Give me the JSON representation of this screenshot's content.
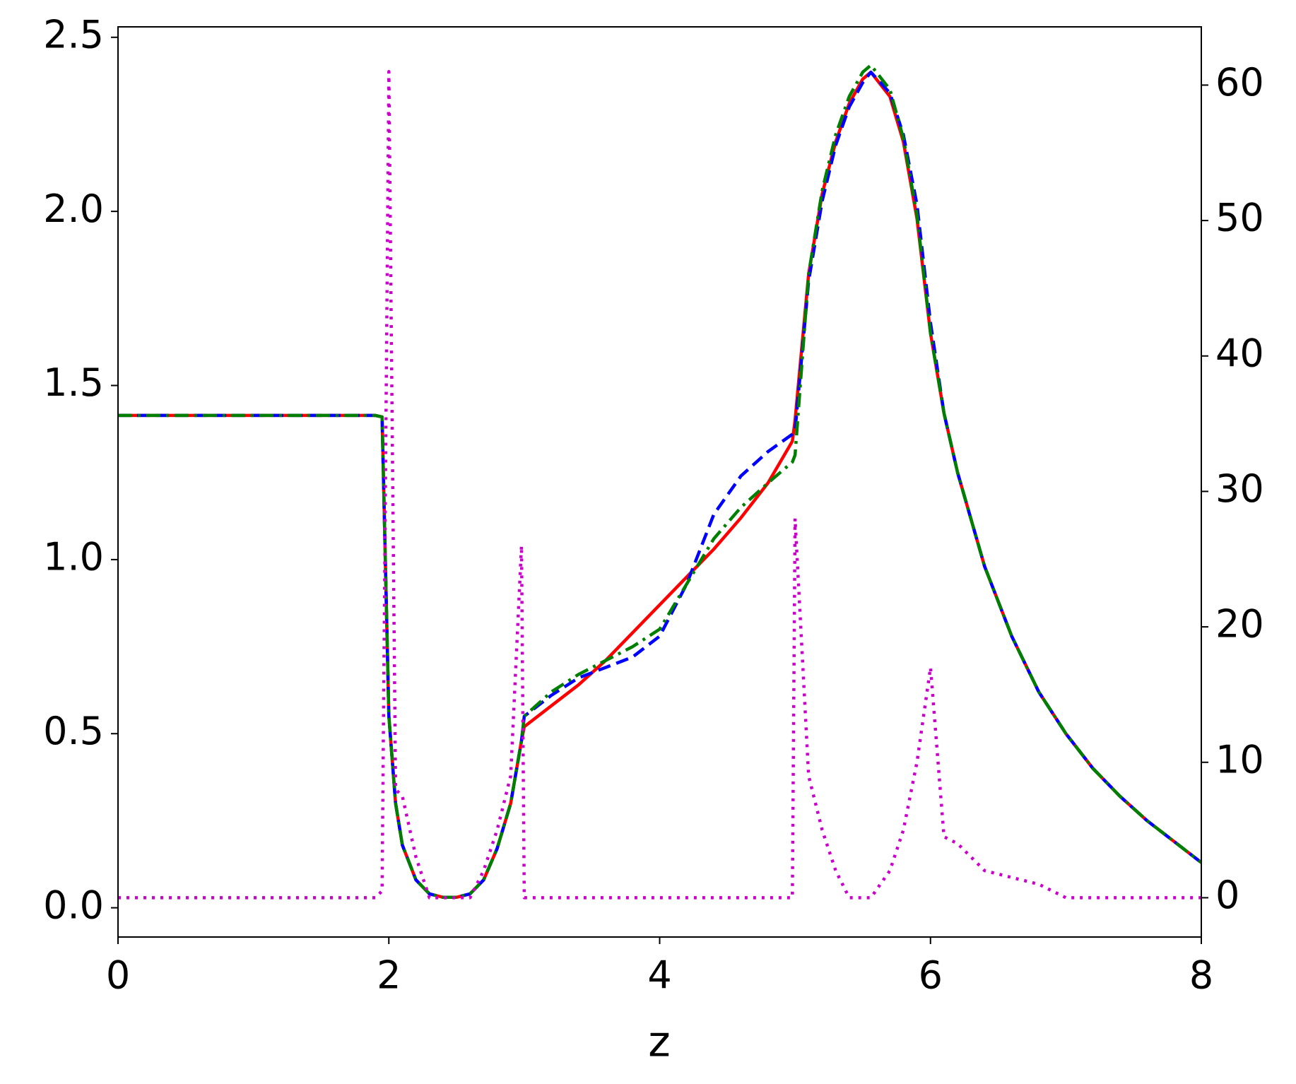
{
  "chart_data": {
    "type": "line",
    "xlabel": "z",
    "x": [
      0,
      1.9,
      1.95,
      2.0,
      2.05,
      2.1,
      2.2,
      2.3,
      2.4,
      2.5,
      2.6,
      2.7,
      2.8,
      2.9,
      2.98,
      3.0,
      3.2,
      3.4,
      3.6,
      3.8,
      4.0,
      4.2,
      4.4,
      4.6,
      4.8,
      4.98,
      5.0,
      5.1,
      5.2,
      5.3,
      5.4,
      5.5,
      5.56,
      5.7,
      5.8,
      5.9,
      6.0,
      6.1,
      6.2,
      6.4,
      6.6,
      6.8,
      7.0,
      7.2,
      7.4,
      7.6,
      7.8,
      8.0
    ],
    "series": [
      {
        "color": "#ff0000",
        "style": "solid",
        "values": [
          1.414,
          1.414,
          1.41,
          0.55,
          0.3,
          0.18,
          0.08,
          0.04,
          0.03,
          0.03,
          0.04,
          0.08,
          0.17,
          0.3,
          0.48,
          0.52,
          0.58,
          0.64,
          0.71,
          0.79,
          0.87,
          0.95,
          1.03,
          1.12,
          1.22,
          1.34,
          1.4,
          1.82,
          2.05,
          2.2,
          2.31,
          2.38,
          2.4,
          2.33,
          2.2,
          1.98,
          1.65,
          1.42,
          1.25,
          0.98,
          0.78,
          0.62,
          0.5,
          0.4,
          0.32,
          0.25,
          0.19,
          0.13
        ]
      },
      {
        "color": "#0000ff",
        "style": "dashed",
        "values": [
          1.414,
          1.414,
          1.41,
          0.55,
          0.3,
          0.18,
          0.08,
          0.04,
          0.03,
          0.03,
          0.04,
          0.08,
          0.17,
          0.3,
          0.48,
          0.55,
          0.61,
          0.66,
          0.69,
          0.72,
          0.78,
          0.93,
          1.13,
          1.24,
          1.31,
          1.36,
          1.37,
          1.8,
          2.03,
          2.19,
          2.3,
          2.37,
          2.4,
          2.34,
          2.22,
          2.02,
          1.68,
          1.42,
          1.25,
          0.98,
          0.78,
          0.62,
          0.5,
          0.4,
          0.32,
          0.25,
          0.19,
          0.13
        ]
      },
      {
        "color": "#008000",
        "style": "dashdot",
        "values": [
          1.414,
          1.414,
          1.41,
          0.55,
          0.3,
          0.18,
          0.08,
          0.04,
          0.03,
          0.03,
          0.04,
          0.08,
          0.17,
          0.3,
          0.48,
          0.55,
          0.62,
          0.67,
          0.71,
          0.75,
          0.8,
          0.93,
          1.06,
          1.15,
          1.22,
          1.28,
          1.3,
          1.82,
          2.06,
          2.22,
          2.33,
          2.4,
          2.42,
          2.35,
          2.21,
          1.99,
          1.65,
          1.42,
          1.25,
          0.98,
          0.78,
          0.62,
          0.5,
          0.4,
          0.32,
          0.25,
          0.19,
          0.13
        ]
      },
      {
        "color": "#cc00cc",
        "style": "dotted",
        "axis": "y2",
        "values": [
          0,
          0,
          0.5,
          61,
          8,
          7.5,
          3,
          0,
          0,
          0,
          0,
          2,
          5,
          9,
          26,
          0,
          0,
          0,
          0,
          0,
          0,
          0,
          0,
          0,
          0,
          0,
          28,
          9,
          5,
          2,
          0,
          0,
          0,
          2,
          5,
          10,
          17,
          4.5,
          4,
          2,
          1.5,
          1,
          0,
          0,
          0,
          0,
          0,
          0
        ]
      }
    ],
    "xlim": [
      0,
      8
    ],
    "xticks": [
      0,
      2,
      4,
      6,
      8
    ],
    "ylim": [
      -0.084,
      2.53
    ],
    "yticks": [
      {
        "value": 0,
        "label": "0.0"
      },
      0.5,
      {
        "value": 1,
        "label": "1.0"
      },
      1.5,
      {
        "value": 2,
        "label": "2.0"
      },
      2.5
    ],
    "y2lim": [
      -2.9,
      64.3
    ],
    "y2ticks": [
      0,
      10,
      20,
      30,
      40,
      50,
      60
    ]
  }
}
